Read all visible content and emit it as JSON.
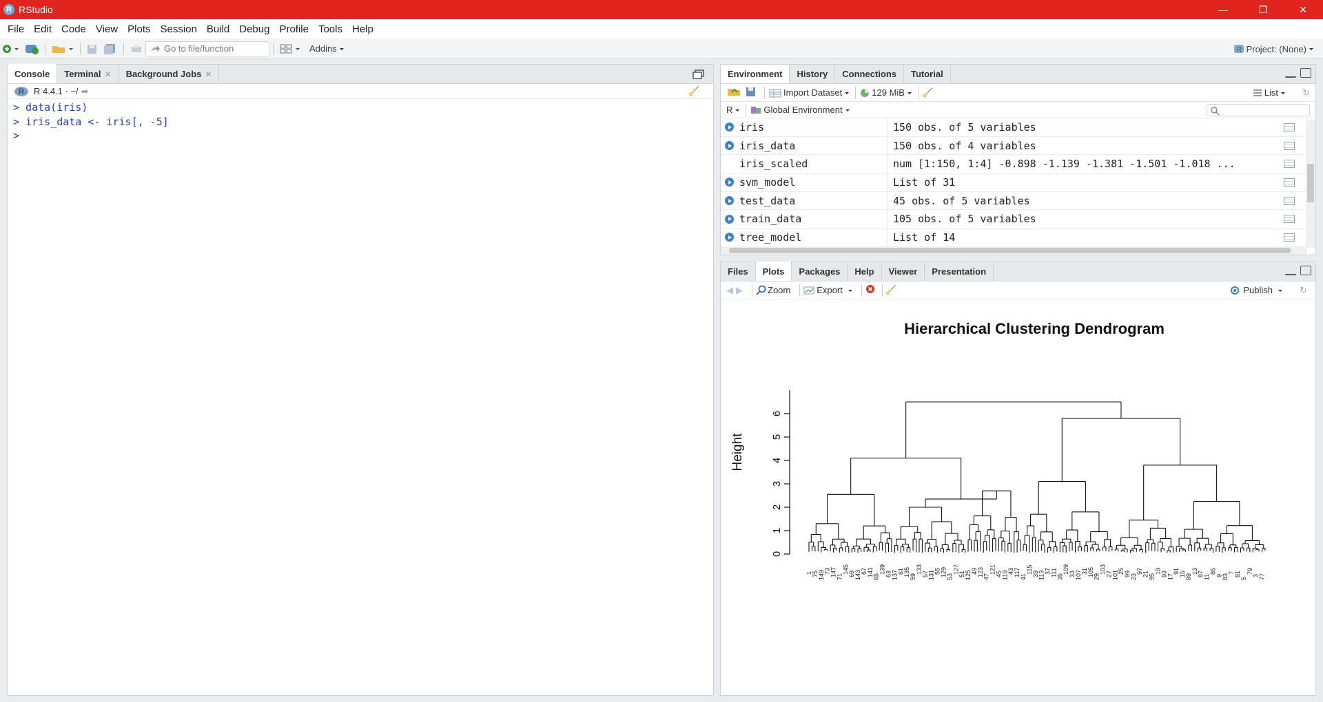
{
  "window": {
    "title": "RStudio",
    "minimize": "—",
    "restore": "❐",
    "close": "✕"
  },
  "menu": [
    "File",
    "Edit",
    "Code",
    "View",
    "Plots",
    "Session",
    "Build",
    "Debug",
    "Profile",
    "Tools",
    "Help"
  ],
  "toolbar": {
    "goto_placeholder": "Go to file/function",
    "addins": "Addins",
    "project": "Project: (None)"
  },
  "console_pane": {
    "tabs": [
      "Console",
      "Terminal",
      "Background Jobs"
    ],
    "r_version": "R 4.4.1 · ~/",
    "lines": [
      "> data(iris)",
      "> iris_data <- iris[, -5]",
      ">"
    ]
  },
  "env_pane": {
    "tabs": [
      "Environment",
      "History",
      "Connections",
      "Tutorial"
    ],
    "import_dataset": "Import Dataset",
    "memory": "129 MiB",
    "view_mode": "List",
    "language": "R",
    "scope": "Global Environment",
    "rows": [
      {
        "name": "iris",
        "value": "150 obs. of 5 variables",
        "expandable": true
      },
      {
        "name": "iris_data",
        "value": "150 obs. of 4 variables",
        "expandable": true
      },
      {
        "name": "iris_scaled",
        "value": "num [1:150, 1:4] -0.898 -1.139 -1.381 -1.501 -1.018 ...",
        "expandable": false
      },
      {
        "name": "svm_model",
        "value": "List of  31",
        "expandable": true
      },
      {
        "name": "test_data",
        "value": "45 obs. of 5 variables",
        "expandable": true
      },
      {
        "name": "train_data",
        "value": "105 obs. of 5 variables",
        "expandable": true
      },
      {
        "name": "tree_model",
        "value": "List of  14",
        "expandable": true
      }
    ]
  },
  "plots_pane": {
    "tabs": [
      "Files",
      "Plots",
      "Packages",
      "Help",
      "Viewer",
      "Presentation"
    ],
    "zoom": "Zoom",
    "export": "Export",
    "publish": "Publish"
  },
  "chart_data": {
    "type": "dendrogram",
    "title": "Hierarchical Clustering Dendrogram",
    "ylabel": "Height",
    "xlabel": "",
    "ylim": [
      0,
      6.5
    ],
    "yticks": [
      "0",
      "1",
      "2",
      "3",
      "4",
      "5",
      "6"
    ],
    "leaves": 150,
    "main_merges": [
      {
        "label": "root",
        "height": 6.5
      },
      {
        "label": "left cluster",
        "height": 4.1
      },
      {
        "label": "right cluster",
        "height": 5.8
      },
      {
        "label": "right sub-cluster",
        "height": 3.8
      },
      {
        "label": "left sub-cluster",
        "height": 2.55
      },
      {
        "label": "left sub-cluster 2",
        "height": 2.35
      },
      {
        "label": "right sub-cluster 2",
        "height": 2.25
      },
      {
        "label": "middle sub-cluster",
        "height": 3.1
      }
    ]
  }
}
